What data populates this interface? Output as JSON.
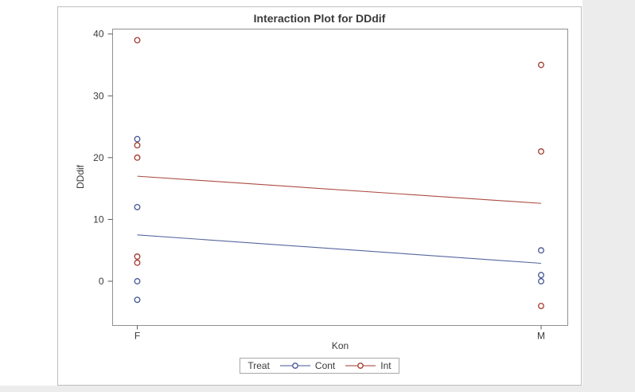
{
  "chart_data": {
    "type": "line",
    "subtype": "interaction-plot-scatter-with-fit-lines",
    "title": "Interaction Plot for DDdif",
    "xlabel": "Kon",
    "ylabel": "DDdif",
    "categories": [
      "F",
      "M"
    ],
    "yticks": [
      0,
      10,
      20,
      30,
      40
    ],
    "ylim": [
      -7,
      41
    ],
    "grid": false,
    "legend": {
      "title": "Treat",
      "position": "bottom",
      "entries": [
        "Cont",
        "Int"
      ]
    },
    "series": [
      {
        "name": "Cont",
        "color": "#445694",
        "marker": "open-circle",
        "points": {
          "F": [
            23,
            12,
            0,
            -3
          ],
          "M": [
            5,
            1,
            0
          ]
        },
        "trend_line": {
          "F": 7.5,
          "M": 2.9
        }
      },
      {
        "name": "Int",
        "color": "#A23A2E",
        "marker": "open-circle",
        "points": {
          "F": [
            39,
            22,
            20,
            4,
            3
          ],
          "M": [
            35,
            21,
            -4
          ]
        },
        "trend_line": {
          "F": 17.0,
          "M": 12.6
        }
      }
    ]
  },
  "colors": {
    "outer_background": "#ececec",
    "page_background": "#ffffff",
    "panel_border": "#bdbdbd",
    "plot_frame": "#909090",
    "tick": "#5a5a5a",
    "text": "#3a3a3a",
    "legend_border": "#a8a8a8"
  }
}
